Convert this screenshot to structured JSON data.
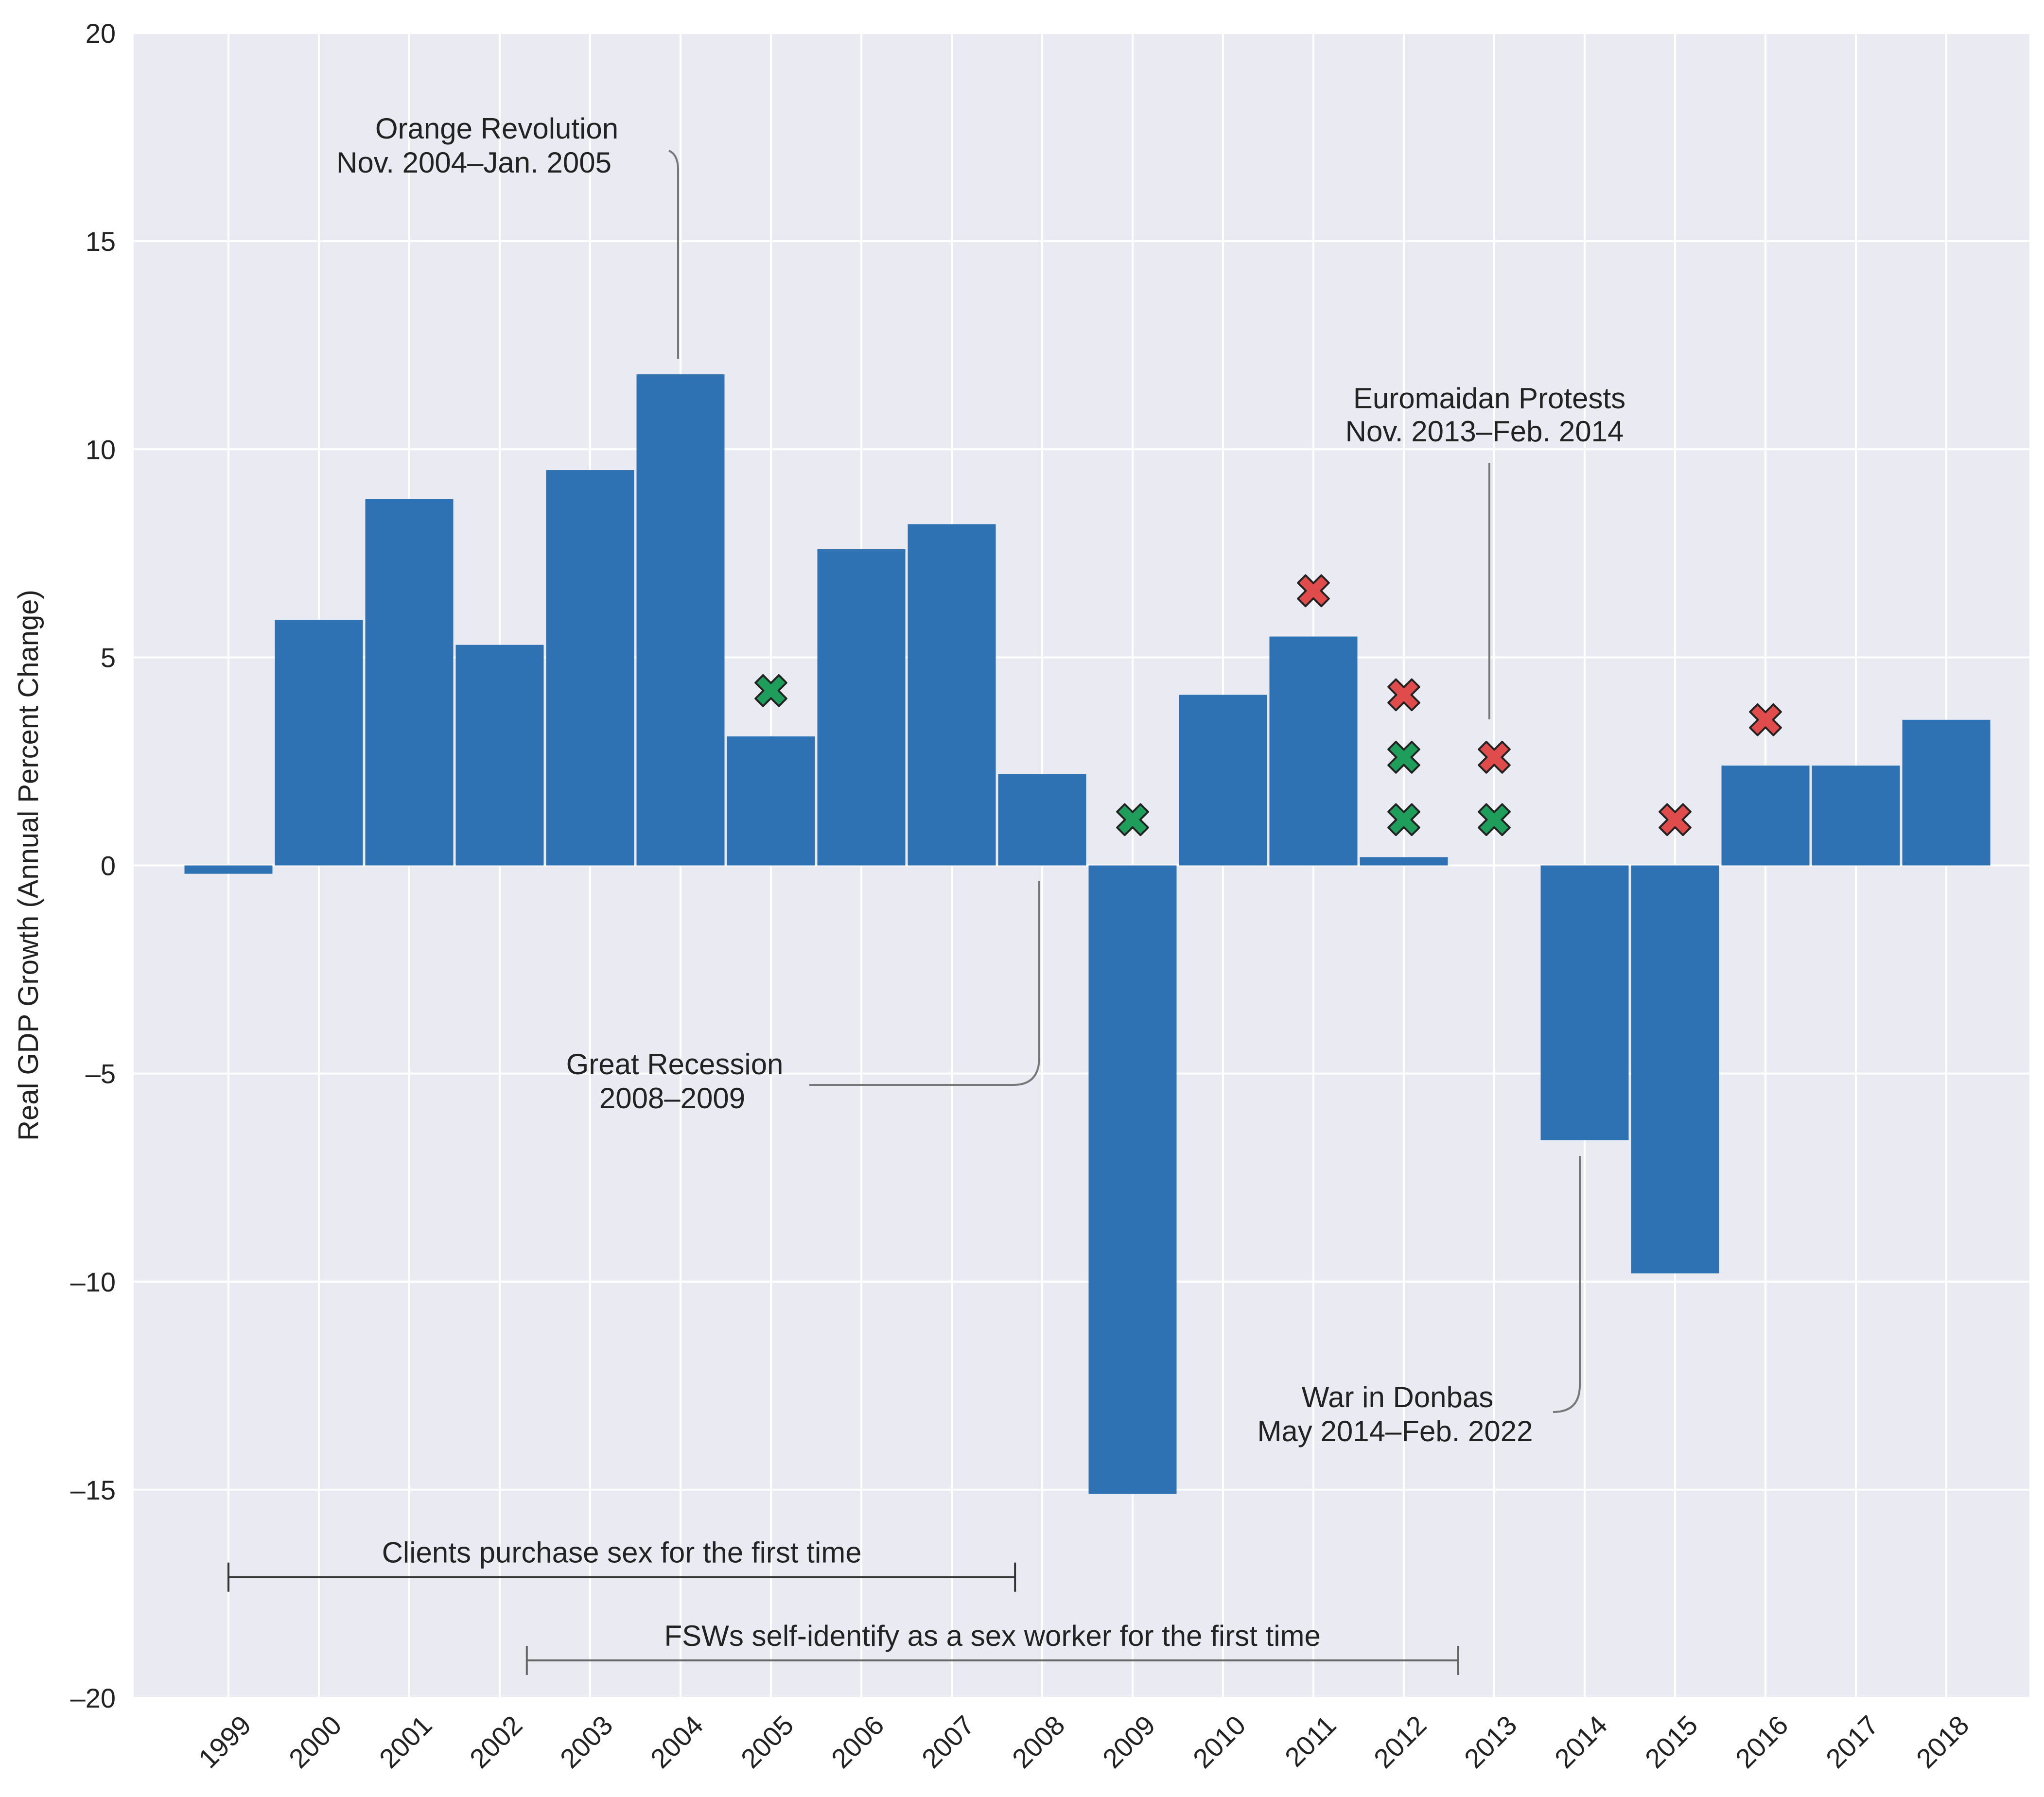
{
  "chart_data": {
    "type": "bar",
    "title": "",
    "xlabel": "",
    "ylabel": "Real GDP Growth (Annual Percent Change)",
    "ylim": [
      -20,
      20
    ],
    "yticks": [
      20,
      15,
      10,
      5,
      0,
      -5,
      -10,
      -15,
      -20
    ],
    "ytick_labels": [
      "20",
      "15",
      "10",
      "5",
      "0",
      "–5",
      "–10",
      "–15",
      "–20"
    ],
    "grid": true,
    "categories": [
      "1999",
      "2000",
      "2001",
      "2002",
      "2003",
      "2004",
      "2005",
      "2006",
      "2007",
      "2008",
      "2009",
      "2010",
      "2011",
      "2012",
      "2013",
      "2014",
      "2015",
      "2016",
      "2017",
      "2018"
    ],
    "values": [
      -0.2,
      5.9,
      8.8,
      5.3,
      9.5,
      11.8,
      3.1,
      7.6,
      8.2,
      2.2,
      -15.1,
      4.1,
      5.5,
      0.2,
      0.0,
      -6.6,
      -9.8,
      2.4,
      2.4,
      3.5
    ],
    "bar_color": "#2e72b3",
    "markers": [
      {
        "year": "2005",
        "value": 4.2,
        "color": "#1e9e5a"
      },
      {
        "year": "2009",
        "value": 1.1,
        "color": "#1e9e5a"
      },
      {
        "year": "2011",
        "value": 6.6,
        "color": "#e04b4b"
      },
      {
        "year": "2012",
        "value": 4.1,
        "color": "#e04b4b"
      },
      {
        "year": "2012",
        "value": 2.6,
        "color": "#1e9e5a"
      },
      {
        "year": "2012",
        "value": 1.1,
        "color": "#1e9e5a"
      },
      {
        "year": "2013",
        "value": 2.6,
        "color": "#e04b4b"
      },
      {
        "year": "2013",
        "value": 1.1,
        "color": "#1e9e5a"
      },
      {
        "year": "2015",
        "value": 1.1,
        "color": "#e04b4b"
      },
      {
        "year": "2016",
        "value": 3.5,
        "color": "#e04b4b"
      }
    ],
    "annotations": [
      {
        "line1": "Orange Revolution",
        "line2": "Nov. 2004–Jan. 2005"
      },
      {
        "line1": "Euromaidan Protests",
        "line2": "Nov. 2013–Feb. 2014"
      },
      {
        "line1": "Great Recession",
        "line2": "2008–2009"
      },
      {
        "line1": "War in Donbas",
        "line2": "May 2014–Feb. 2022"
      }
    ],
    "ranges": [
      {
        "label": "Clients purchase sex for the first time",
        "start_year": 1999,
        "end_year": 2007.7,
        "value": -17.1,
        "color": "#333333"
      },
      {
        "label": "FSWs self-identify as a sex worker for the first time",
        "start_year": 2002.3,
        "end_year": 2012.6,
        "value": -19.1,
        "color": "#666666"
      }
    ]
  }
}
